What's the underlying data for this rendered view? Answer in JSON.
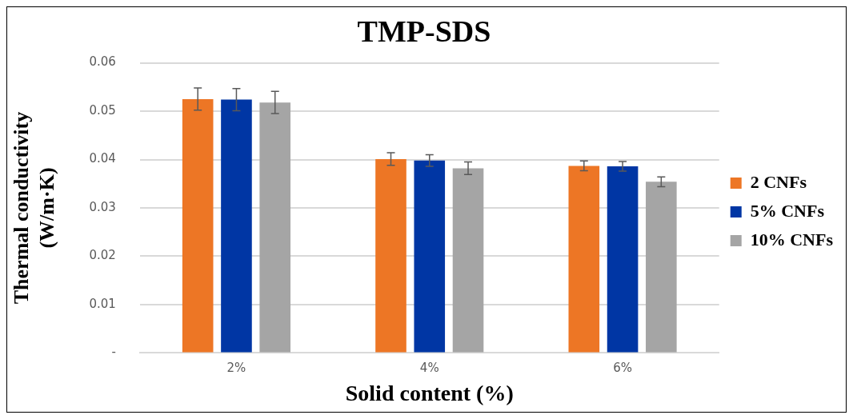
{
  "chart_data": {
    "type": "bar",
    "title": "TMP-SDS",
    "xlabel": "Solid content (%)",
    "ylabel": "Thermal conductivity (W/m·K)",
    "categories": [
      "2%",
      "4%",
      "6%"
    ],
    "series": [
      {
        "name": "2 CNFs",
        "color": "#ed7625",
        "values": [
          0.0525,
          0.0401,
          0.0387
        ],
        "errors": [
          0.0023,
          0.0013,
          0.001
        ]
      },
      {
        "name": "5% CNFs",
        "color": "#0036a4",
        "values": [
          0.0524,
          0.0398,
          0.0386
        ],
        "errors": [
          0.0023,
          0.0012,
          0.001
        ]
      },
      {
        "name": "10% CNFs",
        "color": "#a5a5a5",
        "values": [
          0.0518,
          0.0382,
          0.0354
        ],
        "errors": [
          0.0023,
          0.0013,
          0.001
        ]
      }
    ],
    "ylim": [
      0,
      0.06
    ],
    "yticks": [
      {
        "value": 0,
        "label": "-"
      },
      0.01,
      0.02,
      0.03,
      0.04,
      0.05,
      0.06
    ],
    "grid": "y",
    "legend": "right"
  }
}
